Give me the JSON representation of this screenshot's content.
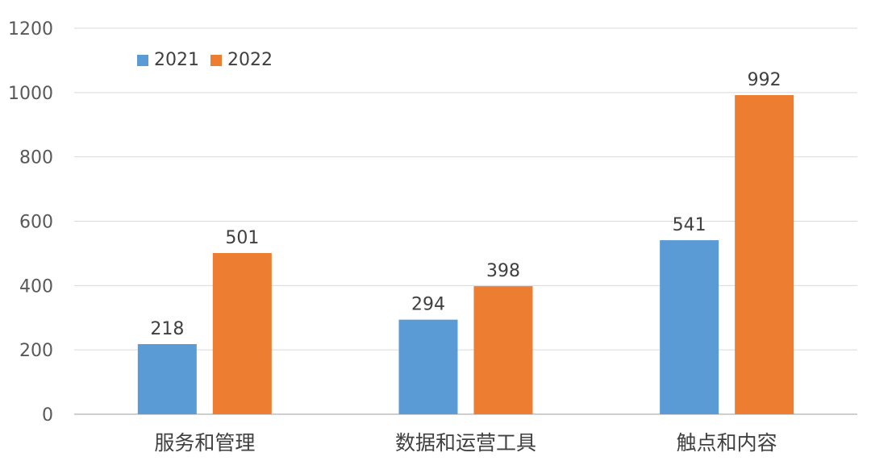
{
  "chart_data": {
    "type": "bar",
    "categories": [
      "服务和管理",
      "数据和运营工具",
      "触点和内容"
    ],
    "series": [
      {
        "name": "2021",
        "values": [
          218,
          294,
          541
        ],
        "color": "#5B9BD5"
      },
      {
        "name": "2022",
        "values": [
          501,
          398,
          992
        ],
        "color": "#ED7D31"
      }
    ],
    "ylim": [
      0,
      1200
    ],
    "yticks": [
      0,
      200,
      400,
      600,
      800,
      1000,
      1200
    ],
    "grid": true,
    "legend_position": "top-left",
    "data_labels": true,
    "title": "",
    "xlabel": "",
    "ylabel": ""
  }
}
